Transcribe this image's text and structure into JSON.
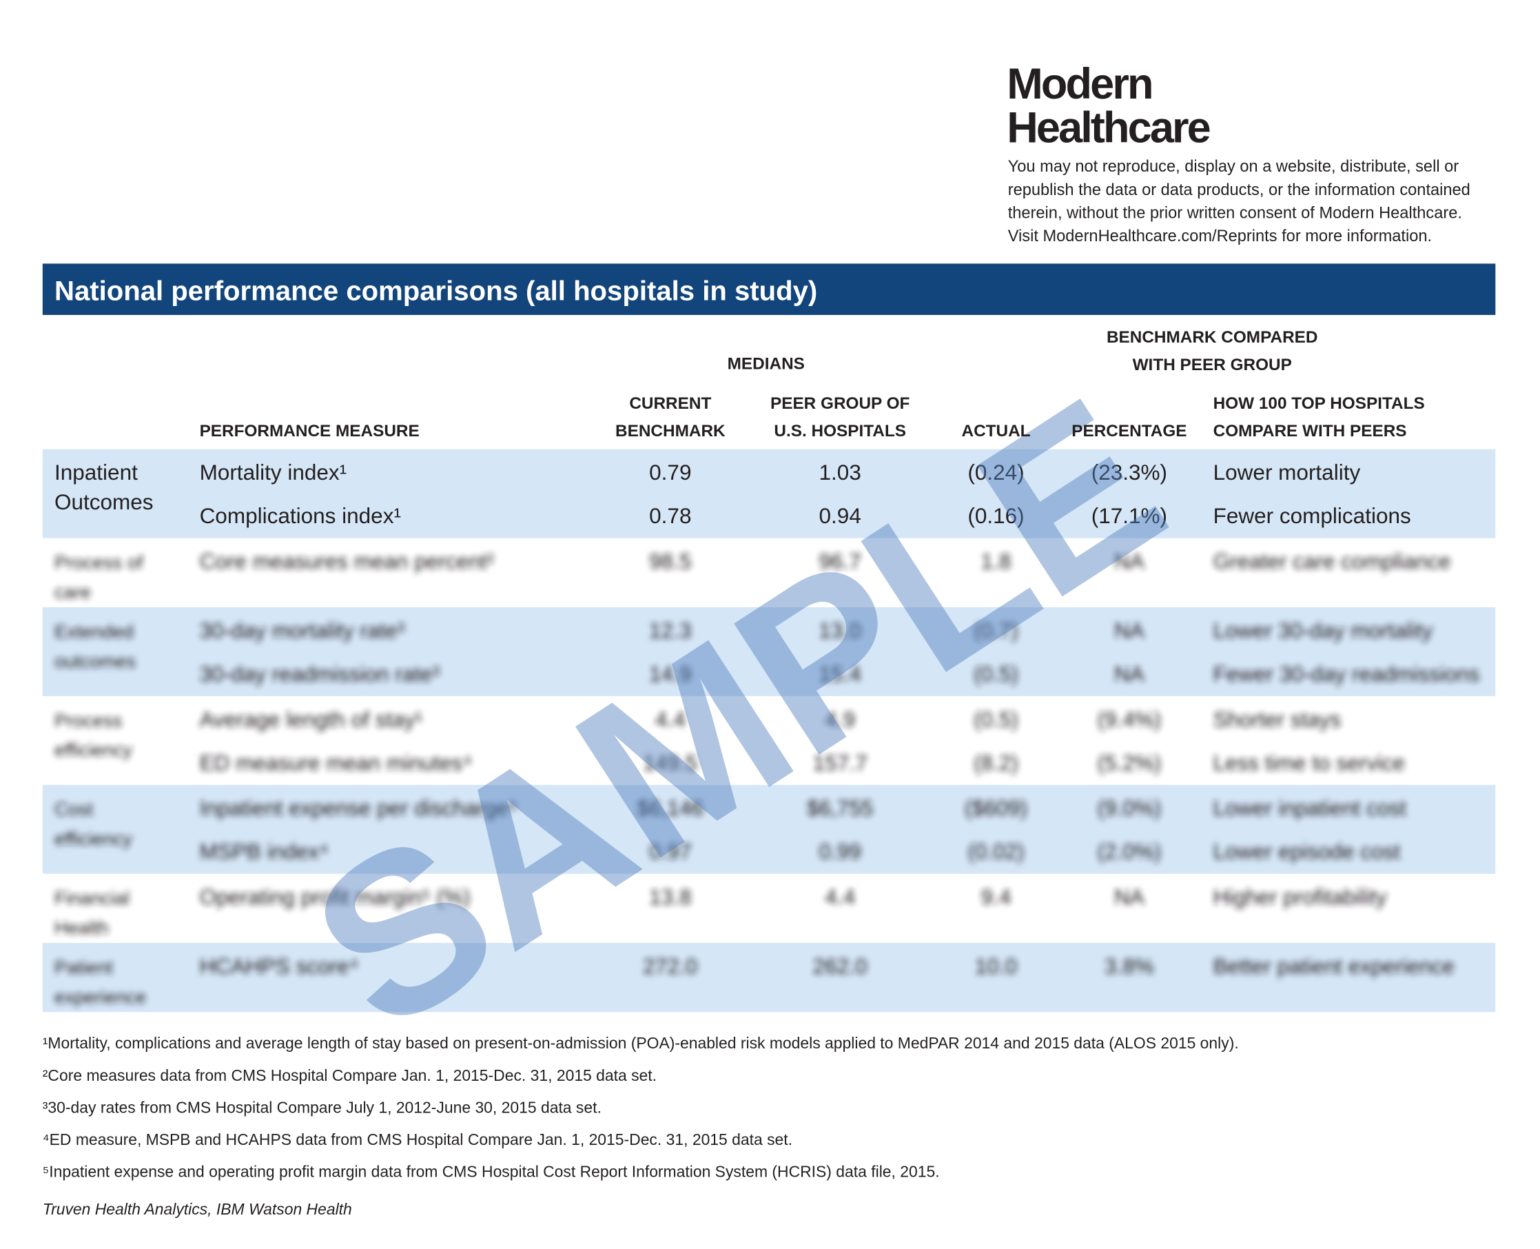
{
  "header": {
    "brand": [
      "Modern",
      "Healthcare"
    ],
    "notice": [
      "You may not reproduce, display on a website, distribute, sell or",
      "republish the data or data products, or the information contained",
      "therein, without the prior written consent of Modern Healthcare.",
      "Visit ModernHealthcare.com/Reprints for more information."
    ]
  },
  "title": "National performance comparisons (all hospitals in study)",
  "table": {
    "group_headers": {
      "medians": "MEDIANS",
      "benchmark": [
        "BENCHMARK COMPARED",
        "WITH PEER GROUP"
      ]
    },
    "columns": [
      [
        "PERFORMANCE MEASURE"
      ],
      [
        "CURRENT",
        "BENCHMARK"
      ],
      [
        "PEER GROUP OF",
        "U.S. HOSPITALS"
      ],
      [
        "ACTUAL"
      ],
      [
        "PERCENTAGE"
      ],
      [
        "HOW 100 TOP HOSPITALS",
        "COMPARE WITH PEERS"
      ]
    ],
    "groups": [
      {
        "label": [
          "Inpatient",
          "Outcomes"
        ],
        "rows": [
          [
            "Mortality index¹",
            "0.79",
            "1.03",
            "(0.24)",
            "(23.3%)",
            "Lower mortality"
          ],
          [
            "Complications index¹",
            "0.78",
            "0.94",
            "(0.16)",
            "(17.1%)",
            "Fewer complications"
          ]
        ]
      },
      {
        "label": [
          "Process of",
          "care"
        ],
        "rows": [
          [
            "Core measures mean percent²",
            "98.5",
            "96.7",
            "1.8",
            "NA",
            "Greater care compliance"
          ]
        ]
      },
      {
        "label": [
          "Extended",
          "outcomes"
        ],
        "rows": [
          [
            "30-day mortality rate³",
            "12.3",
            "13.0",
            "(0.7)",
            "NA",
            "Lower 30-day mortality"
          ],
          [
            "30-day readmission rate³",
            "14.9",
            "15.4",
            "(0.5)",
            "NA",
            "Fewer 30-day readmissions"
          ]
        ]
      },
      {
        "label": [
          "Process",
          "efficiency"
        ],
        "rows": [
          [
            "Average length of stay¹",
            "4.4",
            "4.9",
            "(0.5)",
            "(9.4%)",
            "Shorter stays"
          ],
          [
            "ED measure mean minutes⁴",
            "149.5",
            "157.7",
            "(8.2)",
            "(5.2%)",
            "Less time to service"
          ]
        ]
      },
      {
        "label": [
          "Cost",
          "efficiency"
        ],
        "rows": [
          [
            "Inpatient expense per discharge⁵",
            "$6,146",
            "$6,755",
            "($609)",
            "(9.0%)",
            "Lower inpatient cost"
          ],
          [
            "MSPB index⁴",
            "0.97",
            "0.99",
            "(0.02)",
            "(2.0%)",
            "Lower episode cost"
          ]
        ]
      },
      {
        "label": [
          "Financial",
          "Health"
        ],
        "rows": [
          [
            "Operating profit margin⁵ (%)",
            "13.8",
            "4.4",
            "9.4",
            "NA",
            "Higher profitability"
          ]
        ]
      },
      {
        "label": [
          "Patient",
          "experience"
        ],
        "rows": [
          [
            "HCAHPS score⁴",
            "272.0",
            "262.0",
            "10.0",
            "3.8%",
            "Better patient experience"
          ]
        ]
      }
    ]
  },
  "watermark": "SAMPLE",
  "footnotes": [
    "¹Mortality, complications and average length of stay based on present-on-admission (POA)-enabled risk models applied to MedPAR 2014 and 2015 data (ALOS 2015 only).",
    "²Core measures data from CMS Hospital Compare Jan. 1, 2015-Dec. 31, 2015 data set.",
    "³30-day rates from CMS Hospital Compare July 1, 2012-June 30, 2015 data set.",
    "⁴ED measure, MSPB and HCAHPS data from CMS Hospital Compare Jan. 1, 2015-Dec. 31, 2015 data set.",
    "⁵Inpatient expense and operating profit margin data from CMS Hospital Cost Report Information System (HCRIS) data file, 2015."
  ],
  "source": "Truven Health Analytics, IBM Watson Health"
}
